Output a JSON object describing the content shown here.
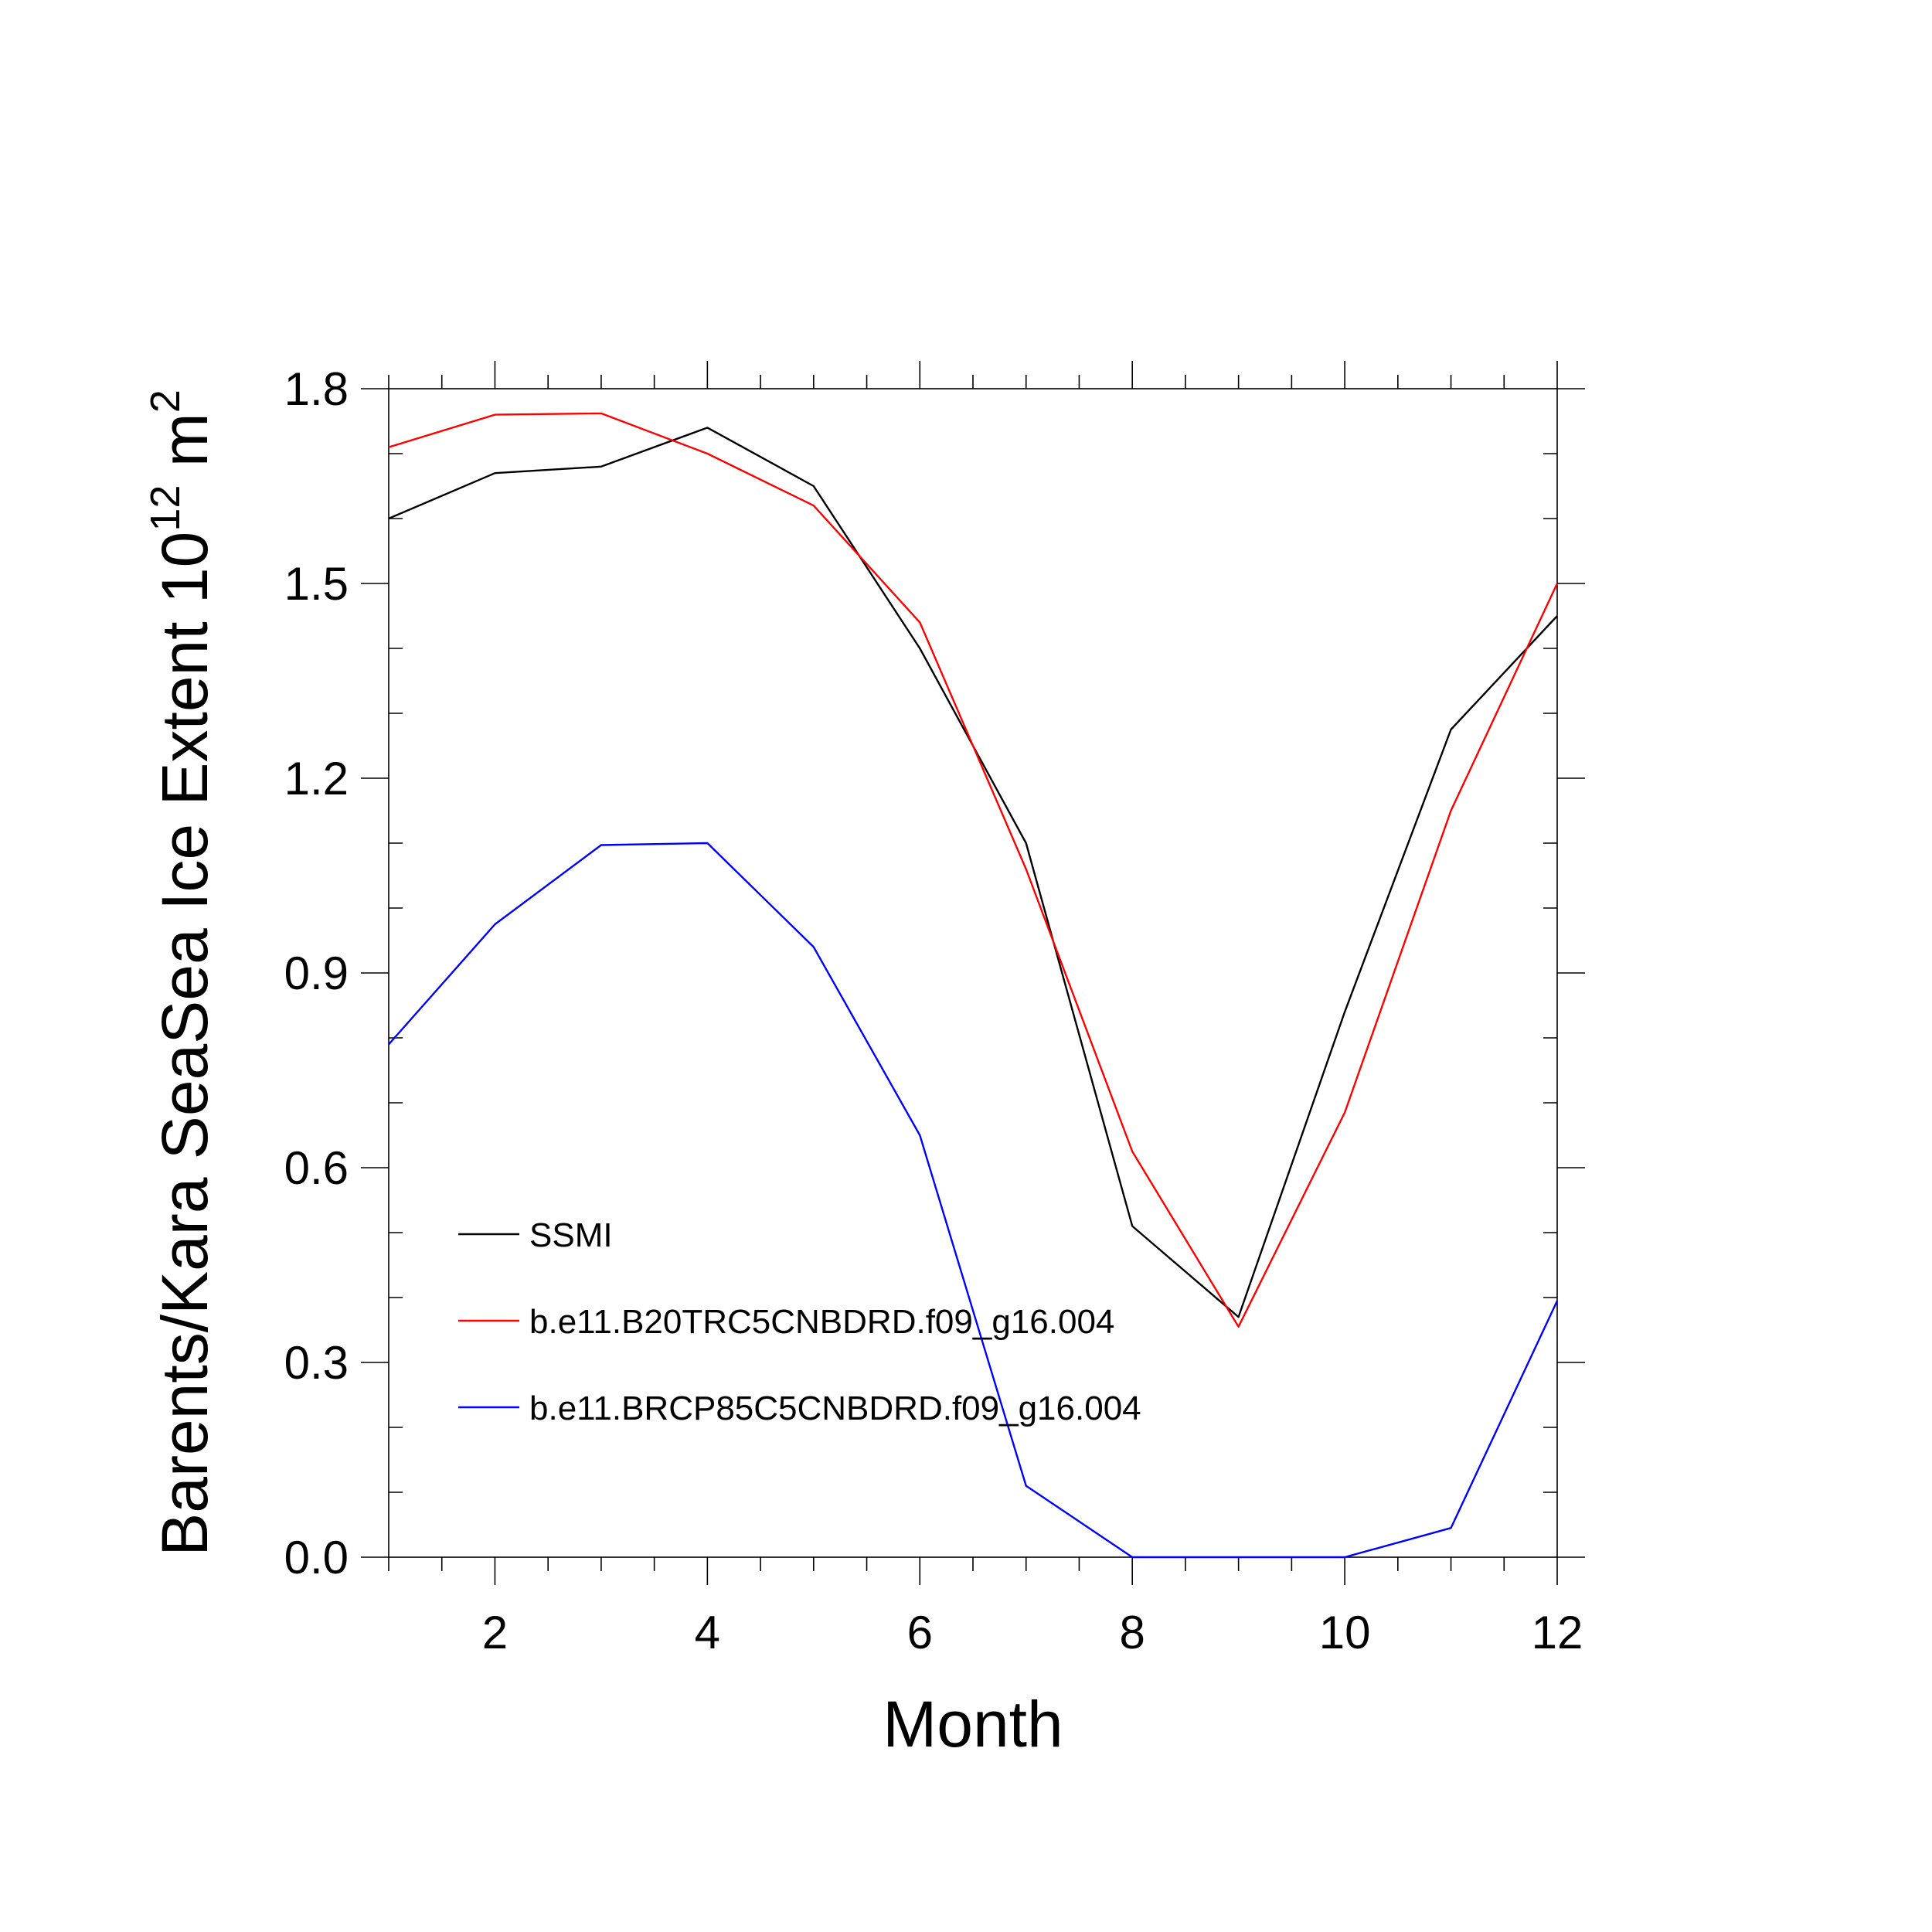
{
  "chart_data": {
    "type": "line",
    "xlabel": "Month",
    "ylabel": {
      "text": "Barents/Kara SeaSea Ice Extent 10",
      "exponent": "12",
      "unit": " m",
      "unit_exponent": "2"
    },
    "xlim": [
      1,
      12
    ],
    "ylim": [
      0.0,
      1.8
    ],
    "x_ticks": [
      2,
      4,
      6,
      8,
      10,
      12
    ],
    "x_tick_labels": [
      "2",
      "4",
      "6",
      "8",
      "10",
      "12"
    ],
    "y_ticks": [
      0.0,
      0.3,
      0.6,
      0.9,
      1.2,
      1.5,
      1.8
    ],
    "y_tick_labels": [
      "0.0",
      "0.3",
      "0.6",
      "0.9",
      "1.2",
      "1.5",
      "1.8"
    ],
    "grid": false,
    "legend_position": "lower-left",
    "x": [
      1,
      2,
      3,
      4,
      5,
      6,
      7,
      8,
      9,
      10,
      11,
      12
    ],
    "series": [
      {
        "name": "SSMI",
        "color": "#000000",
        "values": [
          1.6,
          1.67,
          1.68,
          1.74,
          1.65,
          1.4,
          1.1,
          0.51,
          0.37,
          0.84,
          1.275,
          1.45
        ]
      },
      {
        "name": "b.e11.B20TRC5CNBDRD.f09_g16.004",
        "color": "#ff0000",
        "values": [
          1.71,
          1.76,
          1.762,
          1.7,
          1.62,
          1.44,
          1.06,
          0.625,
          0.355,
          0.685,
          1.15,
          1.5
        ]
      },
      {
        "name": "b.e11.BRCP85C5CNBDRD.f09_g16.004",
        "color": "#0000ff",
        "values": [
          0.79,
          0.975,
          1.097,
          1.1,
          0.94,
          0.65,
          0.11,
          0.0,
          0.0,
          0.0,
          0.045,
          0.395
        ]
      }
    ]
  }
}
